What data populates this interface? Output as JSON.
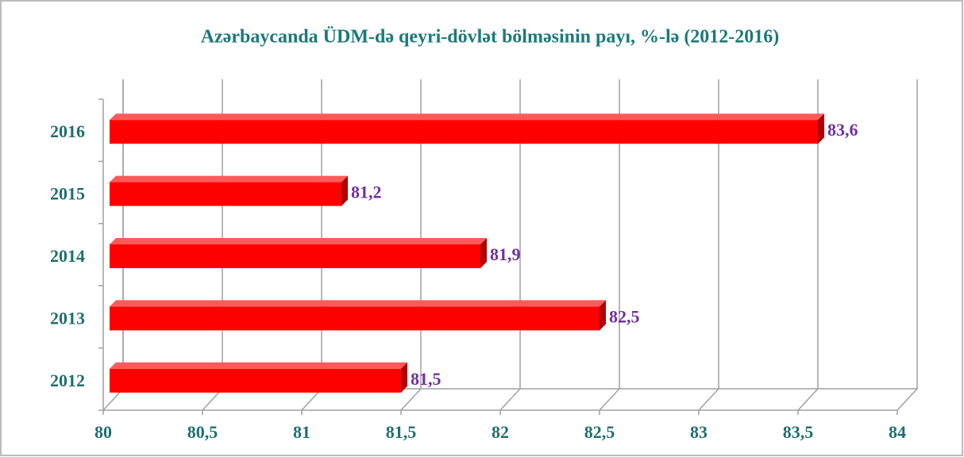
{
  "chart_data": {
    "type": "bar",
    "orientation": "horizontal",
    "title": "Azərbaycanda ÜDM-də qeyri-dövlət bölməsinin payı, %-lə (2012-2016)",
    "categories": [
      "2012",
      "2013",
      "2014",
      "2015",
      "2016"
    ],
    "values": [
      81.5,
      82.5,
      81.9,
      81.2,
      83.6
    ],
    "value_labels": [
      "81,5",
      "82,5",
      "81,9",
      "81,2",
      "83,6"
    ],
    "color": "#ff0000",
    "xlim": [
      80,
      84
    ],
    "xticks": [
      80,
      {
        "value": 80.5,
        "label": "80,5"
      },
      81,
      {
        "value": 81.5,
        "label": "81,5"
      },
      82,
      {
        "value": 82.5,
        "label": "82,5"
      },
      83,
      {
        "value": 83.5,
        "label": "83,5"
      },
      84
    ],
    "grid": true
  }
}
